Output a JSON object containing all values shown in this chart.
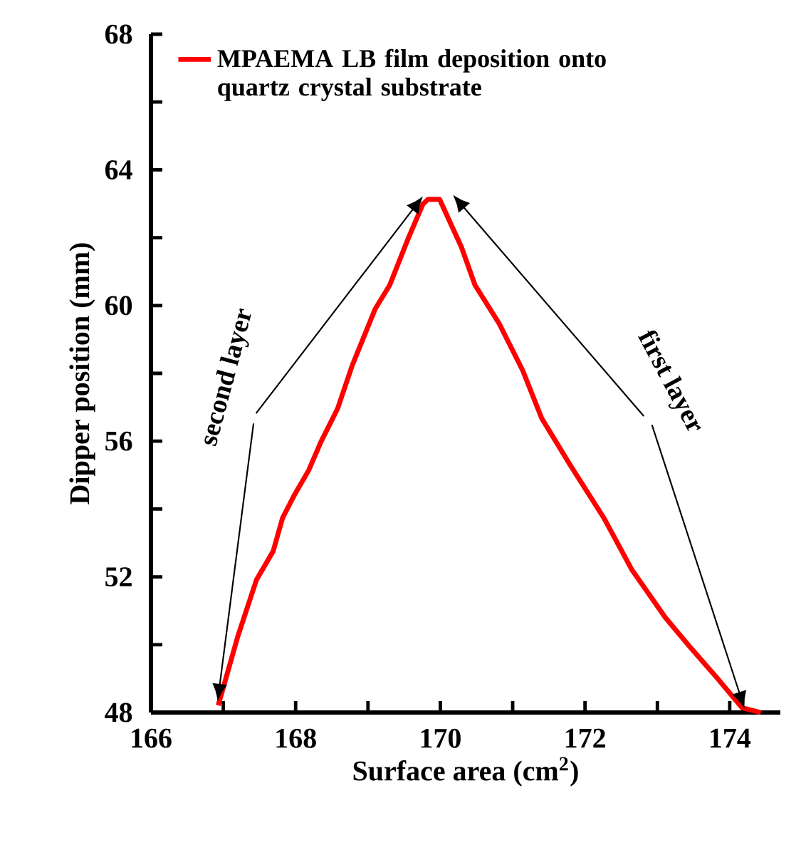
{
  "chart_data": {
    "type": "line",
    "xlabel": "Surface area (cm$^{2}$)",
    "ylabel": "Dipper position (mm)",
    "xlim": [
      166,
      174.7
    ],
    "ylim": [
      48,
      68
    ],
    "xticks": [
      166,
      {
        "value": 167,
        "label": null
      },
      168,
      {
        "value": 169,
        "label": null
      },
      170,
      {
        "value": 171,
        "label": null
      },
      172,
      {
        "value": 173,
        "label": null
      },
      174
    ],
    "yticks": [
      48,
      {
        "value": 50,
        "label": null
      },
      52,
      {
        "value": 54,
        "label": null
      },
      56,
      {
        "value": 58,
        "label": null
      },
      60,
      {
        "value": 62,
        "label": null
      },
      64,
      {
        "value": 66,
        "label": null
      },
      68
    ],
    "legend": "top",
    "line_style": "solid",
    "marker": "none",
    "annotations": [
      "second layer",
      "first layer"
    ],
    "series": [
      {
        "name": "MPAEMA  LB film deposition onto quartz crystal substrate",
        "color": "#ff0000",
        "x": [
          166.93,
          167.2,
          167.46,
          167.69,
          167.82,
          167.99,
          168.18,
          168.35,
          168.58,
          168.78,
          169.1,
          169.3,
          169.56,
          169.76,
          169.83,
          169.99,
          170.29,
          170.48,
          170.81,
          171.14,
          171.4,
          171.8,
          172.26,
          172.65,
          173.11,
          173.44,
          173.84,
          174.17,
          174.43
        ],
        "values": [
          48.21,
          50.24,
          51.92,
          52.76,
          53.74,
          54.44,
          55.14,
          55.98,
          56.96,
          58.22,
          59.9,
          60.6,
          62.0,
          62.99,
          63.13,
          63.13,
          61.73,
          60.6,
          59.48,
          58.08,
          56.68,
          55.28,
          53.74,
          52.2,
          50.8,
          49.96,
          48.98,
          48.14,
          48.0
        ]
      }
    ]
  }
}
